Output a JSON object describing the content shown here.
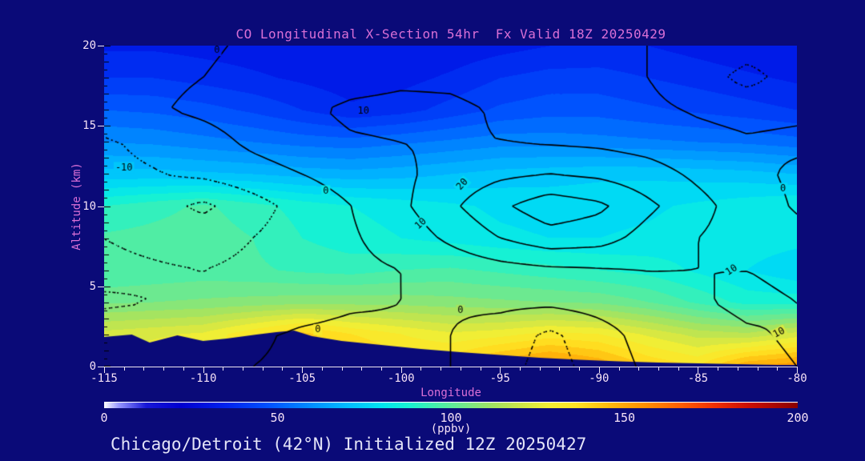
{
  "title": "CO Longitudinal X-Section 54hr  Fx Valid 18Z 20250429",
  "caption": "Chicago/Detroit (42°N) Initialized 12Z 20250427",
  "colors": {
    "background": "#0a0a78",
    "title": "#da70d6",
    "axis_label": "#da70d6",
    "tick_label": "#f6e2f6",
    "caption": "#e4e4f8",
    "contour_line": "#000000",
    "axis_tick": "#eee6f2",
    "colorbar_topline": "#ffffff"
  },
  "x_axis": {
    "label": "Longitude",
    "range": [
      -115,
      -80
    ],
    "major_ticks": [
      -115,
      -110,
      -105,
      -100,
      -95,
      -90,
      -85,
      -80
    ],
    "minor_step": 1
  },
  "y_axis": {
    "label": "Altitude (km)",
    "range": [
      0,
      20
    ],
    "major_ticks": [
      0,
      5,
      10,
      15,
      20
    ],
    "minor_step": 0.5
  },
  "colorbar": {
    "label": "(ppbv)",
    "range": [
      0,
      200
    ],
    "ticks": [
      0,
      50,
      100,
      150,
      200
    ]
  },
  "chart_data": {
    "type": "heatmap",
    "x_name": "longitude_deg",
    "y_name": "altitude_km",
    "units": "ppbv",
    "lons": [
      -115,
      -112.5,
      -110,
      -107.5,
      -105,
      -102.5,
      -100,
      -97.5,
      -95,
      -92.5,
      -90,
      -87.5,
      -85,
      -82.5,
      -80
    ],
    "alts": [
      0,
      2,
      4,
      6,
      8,
      10,
      12,
      14,
      16,
      18,
      20
    ],
    "co_ppbv": [
      [
        128,
        130,
        132,
        134,
        140,
        146,
        138,
        140,
        150,
        156,
        150,
        140,
        135,
        150,
        154
      ],
      [
        122,
        124,
        126,
        134,
        142,
        135,
        130,
        126,
        128,
        132,
        130,
        124,
        118,
        116,
        122
      ],
      [
        104,
        105,
        106,
        107,
        108,
        108,
        108,
        107,
        106,
        105,
        104,
        100,
        94,
        88,
        88
      ],
      [
        95,
        96,
        97,
        96,
        94,
        93,
        95,
        96,
        94,
        92,
        90,
        88,
        84,
        80,
        76
      ],
      [
        96,
        97,
        98,
        95,
        90,
        87,
        85,
        83,
        81,
        80,
        80,
        81,
        83,
        83,
        82
      ],
      [
        90,
        93,
        96,
        92,
        88,
        85,
        83,
        81,
        79,
        78,
        78,
        79,
        81,
        83,
        85
      ],
      [
        72,
        72,
        71,
        70,
        68,
        67,
        68,
        70,
        72,
        73,
        74,
        74,
        73,
        72,
        70
      ],
      [
        60,
        59,
        57,
        55,
        53,
        52,
        54,
        56,
        58,
        58,
        57,
        56,
        55,
        54,
        52
      ],
      [
        50,
        49,
        47,
        44,
        40,
        36,
        38,
        42,
        46,
        48,
        48,
        46,
        44,
        42,
        40
      ],
      [
        40,
        40,
        38,
        36,
        34,
        32,
        33,
        36,
        40,
        42,
        42,
        40,
        38,
        36,
        34
      ],
      [
        34,
        34,
        33,
        32,
        31,
        30,
        30,
        31,
        33,
        35,
        36,
        35,
        33,
        31,
        30
      ]
    ],
    "anomaly_ppbv": [
      [
        -4,
        -3,
        -2,
        0,
        1,
        2,
        1,
        0,
        -6,
        -14,
        -6,
        2,
        4,
        8,
        10
      ],
      [
        -6,
        -5,
        -3,
        -1,
        1,
        2,
        1,
        0,
        -4,
        -12,
        -4,
        4,
        6,
        9,
        11
      ],
      [
        -11,
        -10,
        -9,
        -6,
        -3,
        -1,
        0,
        1,
        2,
        2,
        4,
        7,
        9,
        12,
        10
      ],
      [
        -8,
        -9,
        -10,
        -8,
        -5,
        -2,
        0,
        3,
        6,
        8,
        9,
        10,
        10,
        10,
        8
      ],
      [
        -10,
        -12,
        -14,
        -10,
        -5,
        -1,
        4,
        12,
        20,
        26,
        24,
        16,
        10,
        6,
        3
      ],
      [
        -14,
        -16,
        -22,
        -14,
        -6,
        0,
        8,
        18,
        28,
        36,
        32,
        22,
        13,
        5,
        -1
      ],
      [
        -12,
        -10.5,
        -8,
        -4,
        0,
        4,
        8,
        14,
        18,
        20,
        18,
        14,
        8,
        3,
        -2
      ],
      [
        -11,
        -8,
        -4,
        2,
        6,
        9,
        10,
        11,
        10,
        9,
        8,
        6,
        3,
        1,
        2
      ],
      [
        -4,
        -1,
        2,
        5,
        8,
        12,
        13,
        12,
        9,
        6,
        4,
        2,
        -1,
        -3,
        -2
      ],
      [
        -4,
        -2,
        0,
        2,
        3,
        6,
        8,
        8,
        6,
        4,
        2,
        0,
        -6,
        -13,
        -6
      ],
      [
        -4,
        -3,
        -1,
        1,
        2,
        2,
        3,
        3,
        3,
        2,
        1,
        0,
        -3,
        -6,
        -4
      ]
    ],
    "contour_levels_solid": [
      0,
      10,
      20,
      30
    ],
    "contour_levels_dotted": [
      -20,
      -10
    ],
    "contour_labels": [
      {
        "text": "-10",
        "lon": -114.0,
        "alt": 12.4,
        "angle": 0
      },
      {
        "text": "0",
        "lon": -109.3,
        "alt": 19.7,
        "angle": 0
      },
      {
        "text": "10",
        "lon": -101.9,
        "alt": 15.9,
        "angle": 0
      },
      {
        "text": "0",
        "lon": -103.8,
        "alt": 10.95,
        "angle": 0
      },
      {
        "text": "20",
        "lon": -96.9,
        "alt": 11.35,
        "angle": -48
      },
      {
        "text": "10",
        "lon": -99.0,
        "alt": 8.9,
        "angle": -42
      },
      {
        "text": "0",
        "lon": -97.0,
        "alt": 3.5,
        "angle": 0
      },
      {
        "text": "0",
        "lon": -104.2,
        "alt": 2.3,
        "angle": 0
      },
      {
        "text": "10",
        "lon": -83.3,
        "alt": 6.0,
        "angle": -33
      },
      {
        "text": "10",
        "lon": -80.9,
        "alt": 2.1,
        "angle": -28
      },
      {
        "text": "0",
        "lon": -80.7,
        "alt": 11.1,
        "angle": 0
      }
    ],
    "terrain_km": {
      "lons": [
        -115,
        -113.6,
        -112.7,
        -111.3,
        -110,
        -108.8,
        -107.3,
        -106.3,
        -105.4,
        -104.5,
        -103,
        -101,
        -99,
        -97,
        -95,
        -93,
        -91,
        -89,
        -87,
        -85,
        -83,
        -81,
        -80
      ],
      "heights": [
        1.85,
        2.0,
        1.5,
        1.95,
        1.6,
        1.75,
        2.0,
        2.15,
        2.25,
        1.9,
        1.6,
        1.35,
        1.1,
        0.9,
        0.72,
        0.55,
        0.42,
        0.32,
        0.25,
        0.2,
        0.15,
        0.1,
        0.1
      ]
    },
    "colormap_stops": [
      [
        0,
        "#ffffff"
      ],
      [
        4,
        "#9898ff"
      ],
      [
        12,
        "#1818d8"
      ],
      [
        22,
        "#0000d0"
      ],
      [
        35,
        "#0022ee"
      ],
      [
        48,
        "#0055ff"
      ],
      [
        60,
        "#0090ff"
      ],
      [
        70,
        "#00bcff"
      ],
      [
        80,
        "#00e4f0"
      ],
      [
        88,
        "#18f2d2"
      ],
      [
        96,
        "#48eeaa"
      ],
      [
        104,
        "#74e88a"
      ],
      [
        112,
        "#a2e462"
      ],
      [
        120,
        "#cce648"
      ],
      [
        128,
        "#f2ee34"
      ],
      [
        136,
        "#ffe424"
      ],
      [
        146,
        "#ffb80c"
      ],
      [
        156,
        "#ff9000"
      ],
      [
        166,
        "#ff6000"
      ],
      [
        176,
        "#f03000"
      ],
      [
        186,
        "#cc0f00"
      ],
      [
        200,
        "#8c0000"
      ]
    ]
  }
}
